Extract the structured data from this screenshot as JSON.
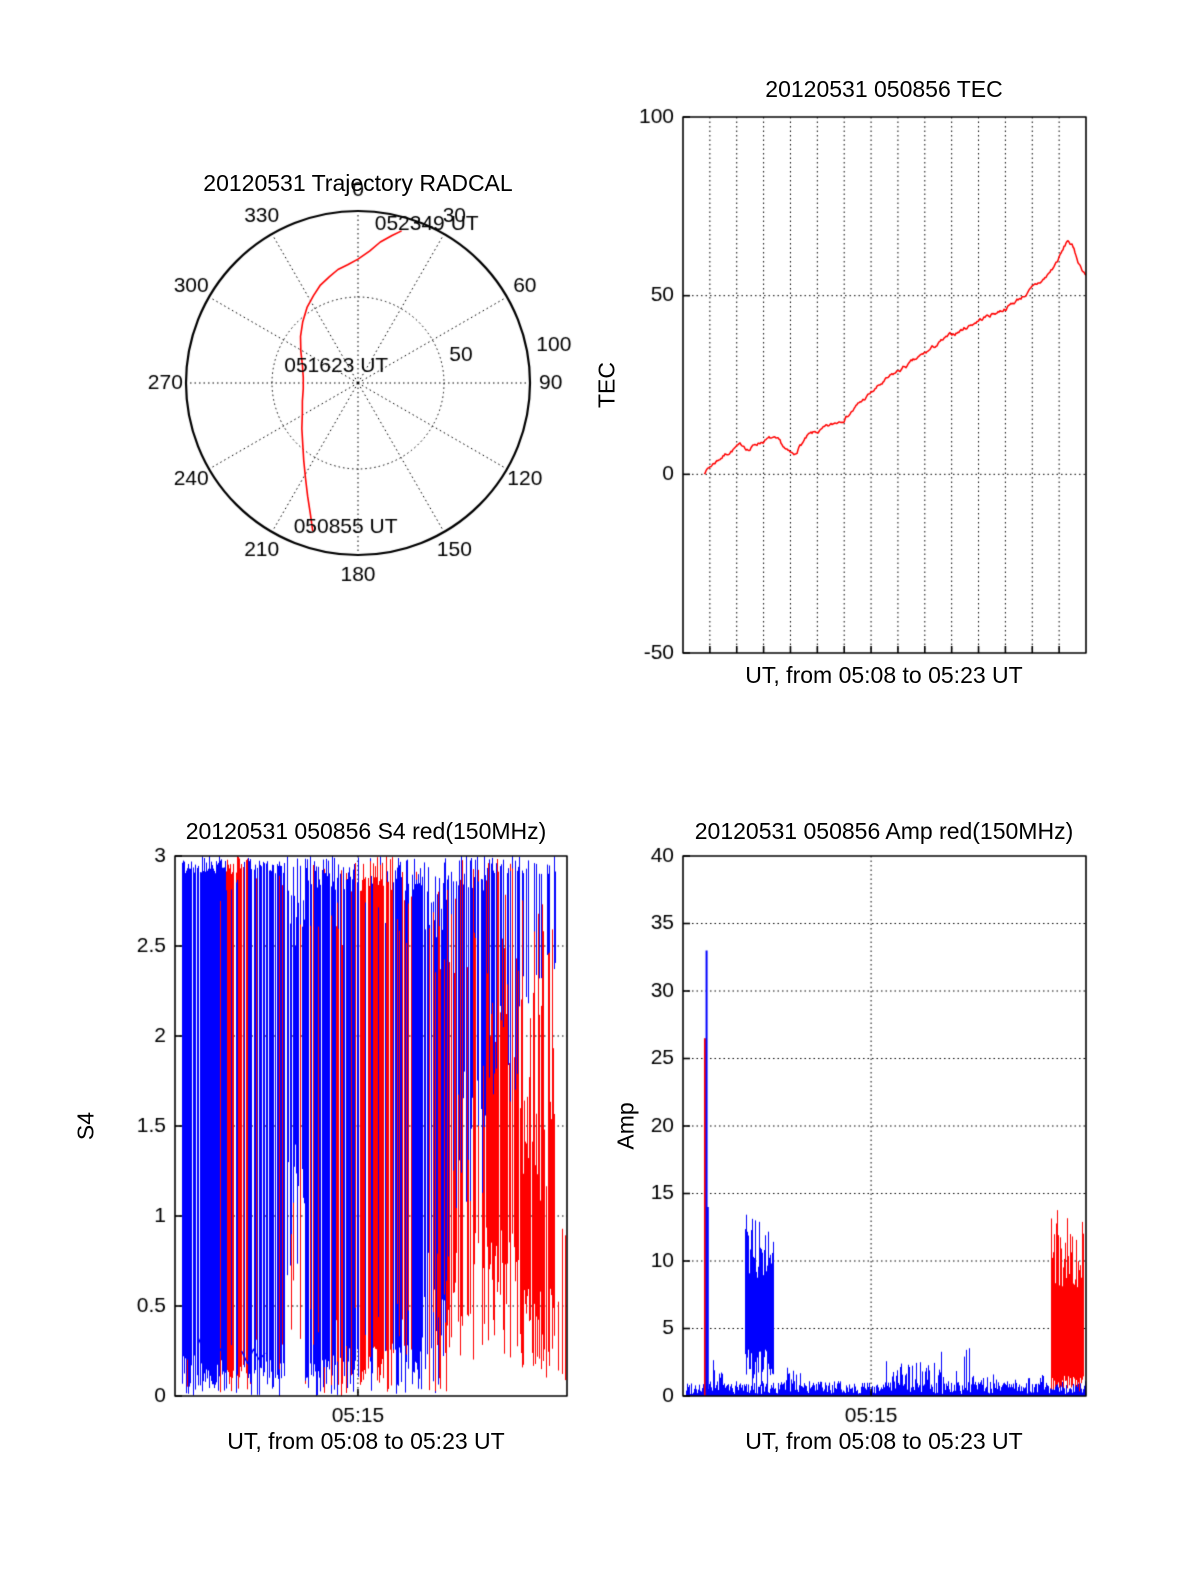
{
  "figure": {
    "bg": "#ffffff",
    "axis_color": "#000000",
    "grid_color": "#000000"
  },
  "chart_data": [
    {
      "id": "trajectory",
      "type": "line",
      "projection": "polar",
      "title": "20120531 Trajectory RADCAL",
      "angle_labels": [
        "0",
        "30",
        "60",
        "90",
        "120",
        "150",
        "180",
        "210",
        "240",
        "270",
        "300",
        "330"
      ],
      "radial_labels": [
        {
          "label": "50",
          "az": 75,
          "r": 62
        },
        {
          "label": "100",
          "az": 79,
          "r": 116
        }
      ],
      "rmax": 100,
      "line_color": "#ff0000",
      "annotations": [
        {
          "text": "052349 UT",
          "az": 6,
          "r": 93
        },
        {
          "text": "051623 UT",
          "az": 283,
          "r": 44
        },
        {
          "text": "050855 UT",
          "az": 204,
          "r": 92
        }
      ],
      "path": [
        [
          197,
          90
        ],
        [
          200,
          81
        ],
        [
          204,
          72
        ],
        [
          209,
          63
        ],
        [
          215,
          55
        ],
        [
          222,
          48
        ],
        [
          231,
          42
        ],
        [
          241,
          37
        ],
        [
          252,
          34
        ],
        [
          264,
          32
        ],
        [
          276,
          32
        ],
        [
          288,
          34
        ],
        [
          299,
          38
        ],
        [
          309,
          43
        ],
        [
          318,
          48
        ],
        [
          326,
          53
        ],
        [
          333,
          57
        ],
        [
          339,
          61
        ],
        [
          345,
          64
        ],
        [
          350,
          67
        ],
        [
          355,
          69
        ],
        [
          0,
          72
        ],
        [
          5,
          77
        ],
        [
          9,
          83
        ],
        [
          13,
          88
        ],
        [
          16,
          92
        ]
      ]
    },
    {
      "id": "tec",
      "type": "line",
      "title": "20120531 050856 TEC",
      "ylabel": "TEC",
      "xlabel": "UT, from 05:08 to 05:23 UT",
      "ylim": [
        -50,
        100
      ],
      "yticks": [
        -50,
        0,
        50,
        100
      ],
      "xgrid_n": 15,
      "line_color": "#ff0000",
      "points": [
        [
          0.05,
          0.5
        ],
        [
          0.07,
          2.5
        ],
        [
          0.09,
          4.5
        ],
        [
          0.11,
          6
        ],
        [
          0.13,
          7.5
        ],
        [
          0.15,
          8
        ],
        [
          0.165,
          7
        ],
        [
          0.18,
          8.5
        ],
        [
          0.2,
          9.5
        ],
        [
          0.22,
          10
        ],
        [
          0.24,
          8.5
        ],
        [
          0.26,
          6
        ],
        [
          0.275,
          5
        ],
        [
          0.29,
          8
        ],
        [
          0.31,
          10.5
        ],
        [
          0.34,
          12
        ],
        [
          0.37,
          13.5
        ],
        [
          0.4,
          16
        ],
        [
          0.43,
          19
        ],
        [
          0.46,
          22
        ],
        [
          0.49,
          25
        ],
        [
          0.52,
          27.5
        ],
        [
          0.55,
          30
        ],
        [
          0.58,
          32
        ],
        [
          0.61,
          34.5
        ],
        [
          0.64,
          37
        ],
        [
          0.67,
          39
        ],
        [
          0.7,
          41
        ],
        [
          0.73,
          43
        ],
        [
          0.76,
          44.5
        ],
        [
          0.79,
          46
        ],
        [
          0.82,
          48
        ],
        [
          0.85,
          50.5
        ],
        [
          0.88,
          53
        ],
        [
          0.9,
          55
        ],
        [
          0.92,
          58
        ],
        [
          0.94,
          62
        ],
        [
          0.955,
          65.5
        ],
        [
          0.965,
          64
        ],
        [
          0.975,
          61
        ],
        [
          0.985,
          58.5
        ],
        [
          1,
          56
        ]
      ]
    },
    {
      "id": "s4",
      "type": "line",
      "title": "20120531 050856 S4 red(150MHz)",
      "ylabel": "S4",
      "xlabel": "UT, from 05:08 to 05:23 UT",
      "ylim": [
        0,
        3
      ],
      "yticks": [
        0,
        0.5,
        1,
        1.5,
        2,
        2.5,
        3
      ],
      "xticks": [
        {
          "f": 0.4667,
          "label": "05:15"
        }
      ],
      "colors": {
        "blue": "#0000ff",
        "red": "#ff0000"
      },
      "segments": [
        {
          "x0": 0.015,
          "x1": 0.05,
          "blue": {
            "p": 0.85,
            "bot": [
              0,
              0.25
            ],
            "top": [
              2.9,
              3
            ]
          },
          "red": {
            "p": 0.05,
            "bot": [
              0,
              0.3
            ],
            "top": [
              2.5,
              3
            ]
          }
        },
        {
          "x0": 0.05,
          "x1": 0.13,
          "blue": {
            "p": 0.9,
            "bot": [
              0,
              0.2
            ],
            "top": [
              2.9,
              3
            ]
          },
          "red": {
            "p": 0.08,
            "bot": [
              0,
              0.3
            ],
            "top": [
              2.7,
              3
            ]
          }
        },
        {
          "x0": 0.13,
          "x1": 0.185,
          "blue": {
            "p": 0.35,
            "bot": [
              0,
              0.3
            ],
            "top": [
              2.8,
              3
            ]
          },
          "red": {
            "p": 0.75,
            "bot": [
              0,
              0.2
            ],
            "top": [
              2.9,
              3
            ]
          }
        },
        {
          "x0": 0.185,
          "x1": 0.28,
          "blue": {
            "p": 0.85,
            "bot": [
              0,
              0.2
            ],
            "top": [
              2.9,
              3
            ]
          },
          "red": {
            "p": 0.2,
            "bot": [
              0,
              0.4
            ],
            "top": [
              2.6,
              3
            ]
          }
        },
        {
          "x0": 0.28,
          "x1": 0.33,
          "blue": {
            "p": 0.7,
            "bot": [
              0.6,
              1.4
            ],
            "top": [
              2.4,
              3
            ]
          },
          "red": {
            "p": 0.1,
            "bot": [
              0.3,
              0.8
            ],
            "top": [
              2.2,
              3
            ]
          }
        },
        {
          "x0": 0.33,
          "x1": 0.47,
          "blue": {
            "p": 0.9,
            "bot": [
              0,
              0.3
            ],
            "top": [
              2.8,
              3
            ]
          },
          "red": {
            "p": 0.3,
            "bot": [
              0,
              0.5
            ],
            "top": [
              2.5,
              3
            ]
          }
        },
        {
          "x0": 0.47,
          "x1": 0.56,
          "blue": {
            "p": 0.5,
            "bot": [
              0,
              0.5
            ],
            "top": [
              2.6,
              3
            ]
          },
          "red": {
            "p": 0.7,
            "bot": [
              0,
              0.3
            ],
            "top": [
              2.8,
              3
            ]
          }
        },
        {
          "x0": 0.56,
          "x1": 0.63,
          "blue": {
            "p": 0.85,
            "bot": [
              0,
              0.3
            ],
            "top": [
              2.8,
              3
            ]
          },
          "red": {
            "p": 0.3,
            "bot": [
              0.2,
              0.6
            ],
            "top": [
              2.5,
              3
            ]
          }
        },
        {
          "x0": 0.63,
          "x1": 0.7,
          "blue": {
            "p": 0.8,
            "bot": [
              0,
              0.8
            ],
            "top": [
              2.5,
              3
            ]
          },
          "red": {
            "p": 0.5,
            "bot": [
              0,
              0.6
            ],
            "top": [
              2.3,
              3
            ]
          }
        },
        {
          "x0": 0.7,
          "x1": 0.8,
          "blue": {
            "p": 0.7,
            "bot": [
              1,
              1.9
            ],
            "top": [
              2.8,
              3
            ]
          },
          "red": {
            "p": 0.55,
            "bot": [
              0.2,
              1
            ],
            "top": [
              2.3,
              3
            ]
          }
        },
        {
          "x0": 0.8,
          "x1": 0.88,
          "blue": {
            "p": 0.5,
            "bot": [
              1.6,
              2.2
            ],
            "top": [
              2.9,
              3
            ]
          },
          "red": {
            "p": 0.8,
            "bot": [
              0.2,
              1
            ],
            "top": [
              1.8,
              3
            ]
          }
        },
        {
          "x0": 0.88,
          "x1": 0.97,
          "blue": {
            "p": 0.3,
            "bot": [
              2.1,
              2.5
            ],
            "top": [
              2.9,
              3
            ]
          },
          "red": {
            "p": 0.85,
            "bot": [
              0.1,
              0.6
            ],
            "top": [
              1,
              2.8
            ]
          }
        },
        {
          "x0": 0.97,
          "x1": 1,
          "blue": {
            "p": 0.05,
            "bot": [
              2.5,
              2.7
            ],
            "top": [
              2.9,
              3
            ]
          },
          "red": {
            "p": 0.35,
            "bot": [
              0.05,
              0.2
            ],
            "top": [
              0.5,
              1.1
            ]
          }
        }
      ],
      "traces": [
        {
          "color": "#0000ff",
          "points": [
            [
              0.06,
              0.32
            ],
            [
              0.075,
              0.24
            ],
            [
              0.09,
              0.3
            ],
            [
              0.105,
              0.22
            ],
            [
              0.12,
              0.27
            ]
          ]
        },
        {
          "color": "#0000ff",
          "points": [
            [
              0.17,
              0.25
            ],
            [
              0.185,
              0.18
            ],
            [
              0.2,
              0.26
            ],
            [
              0.215,
              0.2
            ],
            [
              0.23,
              0.24
            ]
          ]
        }
      ]
    },
    {
      "id": "amp",
      "type": "line",
      "title": "20120531 050856 Amp red(150MHz)",
      "ylabel": "Amp",
      "xlabel": "UT, from 05:08 to 05:23 UT",
      "ylim": [
        0,
        40
      ],
      "yticks": [
        0,
        5,
        10,
        15,
        20,
        25,
        30,
        35,
        40
      ],
      "xticks": [
        {
          "f": 0.4667,
          "label": "05:15"
        }
      ],
      "baseline": {
        "color": "#0000ff",
        "x0": 0.005,
        "x1": 1,
        "min": 0.15,
        "max": 1.1
      },
      "boosts": [
        {
          "color": "#0000ff",
          "x0": 0.075,
          "x1": 0.1,
          "min": 0.4,
          "max": 3.2,
          "p": 0.7
        },
        {
          "color": "#0000ff",
          "x0": 0.25,
          "x1": 0.3,
          "min": 0.3,
          "max": 2.2,
          "p": 0.5
        },
        {
          "color": "#0000ff",
          "x0": 0.5,
          "x1": 0.62,
          "min": 0.4,
          "max": 2.6,
          "p": 0.6
        },
        {
          "color": "#0000ff",
          "x0": 0.62,
          "x1": 0.72,
          "min": 0.4,
          "max": 3.8,
          "p": 0.45
        },
        {
          "color": "#0000ff",
          "x0": 0.72,
          "x1": 0.9,
          "min": 0.2,
          "max": 1.6,
          "p": 0.6
        }
      ],
      "bursts": [
        {
          "color": "#0000ff",
          "x0": 0.155,
          "x1": 0.225,
          "bot": [
            0.3,
            3.5
          ],
          "top": [
            8.5,
            13.5
          ],
          "p": 0.97
        },
        {
          "color": "#ff0000",
          "x0": 0.912,
          "x1": 0.995,
          "bot": [
            0.3,
            1.5
          ],
          "top": [
            8,
            14
          ],
          "p": 0.95
        }
      ],
      "events": [
        {
          "color": "#ff0000",
          "x": 0.052,
          "h": 26.5,
          "w": 2
        },
        {
          "color": "#0000ff",
          "x": 0.056,
          "h": 33,
          "w": 2
        },
        {
          "color": "#0000ff",
          "x": 0.059,
          "h": 14,
          "w": 2
        }
      ]
    }
  ]
}
